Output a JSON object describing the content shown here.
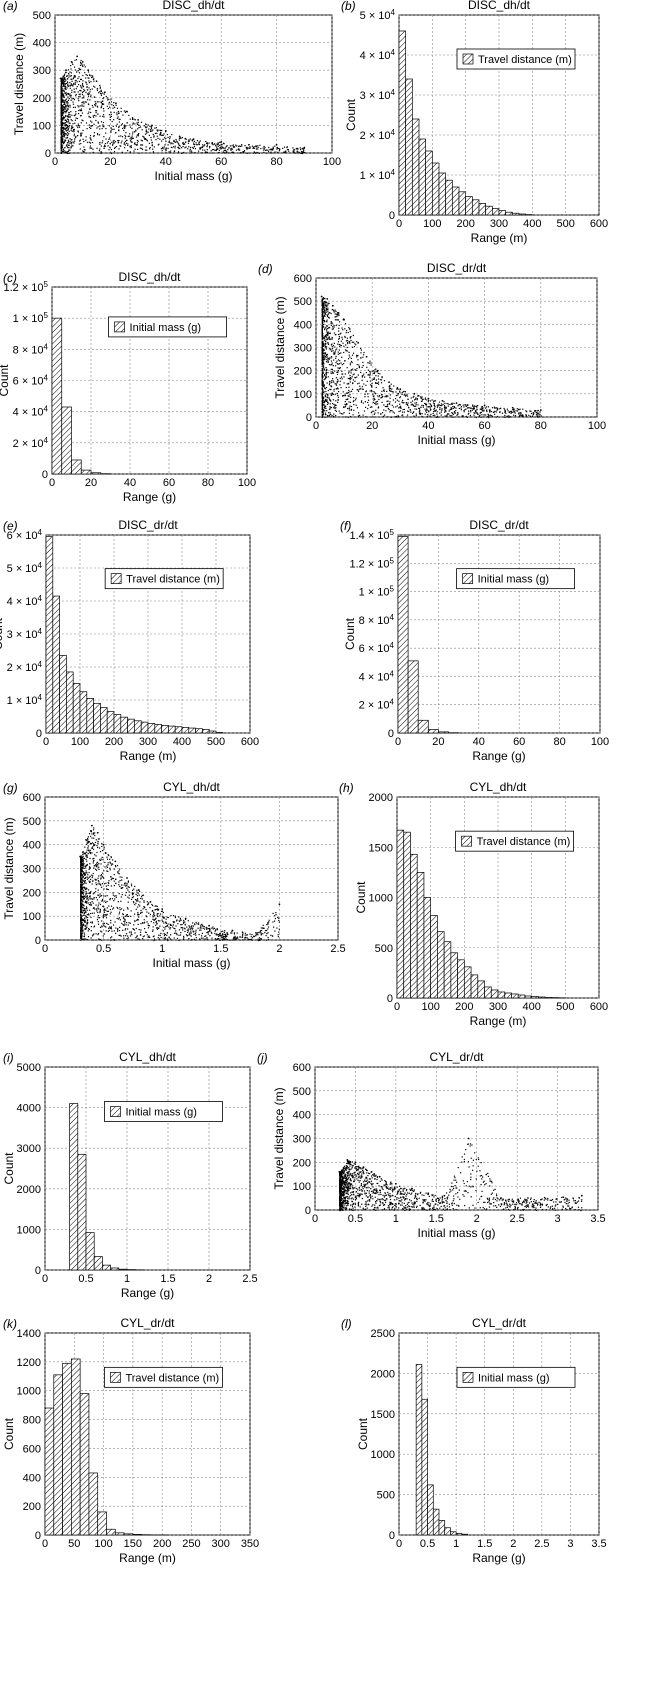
{
  "figure": {
    "panels": [
      {
        "label": "(a)",
        "title": "DISC_dh/dt",
        "kind": "scatter"
      },
      {
        "label": "(b)",
        "title": "DISC_dh/dt",
        "kind": "hist",
        "legend": "Travel distance (m)"
      },
      {
        "label": "(c)",
        "title": "DISC_dh/dt",
        "kind": "hist",
        "legend": "Initial mass (g)"
      },
      {
        "label": "(d)",
        "title": "DISC_dr/dt",
        "kind": "scatter"
      },
      {
        "label": "(e)",
        "title": "DISC_dr/dt",
        "kind": "hist",
        "legend": "Travel distance (m)"
      },
      {
        "label": "(f)",
        "title": "DISC_dr/dt",
        "kind": "hist",
        "legend": "Initial mass (g)"
      },
      {
        "label": "(g)",
        "title": "CYL_dh/dt",
        "kind": "scatter"
      },
      {
        "label": "(h)",
        "title": "CYL_dh/dt",
        "kind": "hist",
        "legend": "Travel distance (m)"
      },
      {
        "label": "(i)",
        "title": "CYL_dh/dt",
        "kind": "hist",
        "legend": "Initial mass (g)"
      },
      {
        "label": "(j)",
        "title": "CYL_dr/dt",
        "kind": "scatter"
      },
      {
        "label": "(k)",
        "title": "CYL_dr/dt",
        "kind": "hist",
        "legend": "Travel distance (m)"
      },
      {
        "label": "(l)",
        "title": "CYL_dr/dt",
        "kind": "hist",
        "legend": "Initial mass (g)"
      }
    ]
  },
  "chart_data": [
    {
      "panel": "(a)",
      "type": "scatter",
      "title": "DISC_dh/dt",
      "xlabel": "Initial mass (g)",
      "ylabel": "Travel distance (m)",
      "xlim": [
        0,
        100
      ],
      "ylim": [
        0,
        500
      ],
      "xticks": [
        "0",
        "20",
        "40",
        "60",
        "80",
        "100"
      ],
      "yticks": [
        "0",
        "100",
        "200",
        "300",
        "400",
        "500"
      ],
      "grid": true,
      "x": [
        2,
        4,
        6,
        8,
        10,
        12,
        15,
        18,
        22,
        26,
        30,
        35,
        40,
        45,
        50,
        60,
        70,
        80,
        90
      ],
      "y": [
        270,
        300,
        330,
        350,
        330,
        300,
        260,
        220,
        180,
        150,
        120,
        100,
        80,
        60,
        50,
        40,
        30,
        30,
        20
      ],
      "y_low": 0
    },
    {
      "panel": "(b)",
      "type": "bar",
      "title": "DISC_dh/dt",
      "xlabel": "Range (m)",
      "ylabel": "Count",
      "legend": "Travel distance (m)",
      "xlim": [
        0,
        600
      ],
      "ylim": [
        0,
        50000
      ],
      "xticks": [
        "0",
        "100",
        "200",
        "300",
        "400",
        "500",
        "600"
      ],
      "yticks": [
        "0",
        "1 × 10^4",
        "2 × 10^4",
        "3 × 10^4",
        "4 × 10^4",
        "5 × 10^4"
      ],
      "grid": true,
      "bin_edges": [
        0,
        20,
        40,
        60,
        80,
        100,
        120,
        140,
        160,
        180,
        200,
        220,
        240,
        260,
        280,
        300,
        320,
        340,
        360,
        380,
        400
      ],
      "values": [
        46000,
        34000,
        24000,
        19000,
        16000,
        13000,
        10500,
        8700,
        7000,
        5800,
        4600,
        3800,
        2900,
        2200,
        1600,
        1100,
        700,
        450,
        250,
        100
      ]
    },
    {
      "panel": "(c)",
      "type": "bar",
      "title": "DISC_dh/dt",
      "xlabel": "Range (g)",
      "ylabel": "Count",
      "legend": "Initial mass (g)",
      "xlim": [
        0,
        100
      ],
      "ylim": [
        0,
        120000
      ],
      "xticks": [
        "0",
        "20",
        "40",
        "60",
        "80",
        "100"
      ],
      "yticks": [
        "0",
        "2 × 10^4",
        "4 × 10^4",
        "6 × 10^4",
        "8 × 10^4",
        "1 × 10^5",
        "1.2 × 10^5"
      ],
      "grid": true,
      "bin_edges": [
        0,
        5,
        10,
        15,
        20,
        25,
        30
      ],
      "values": [
        100000,
        43000,
        9000,
        2500,
        800,
        200
      ]
    },
    {
      "panel": "(d)",
      "type": "scatter",
      "title": "DISC_dr/dt",
      "xlabel": "Initial mass (g)",
      "ylabel": "Travel distance (m)",
      "xlim": [
        0,
        100
      ],
      "ylim": [
        0,
        600
      ],
      "xticks": [
        "0",
        "20",
        "40",
        "60",
        "80",
        "100"
      ],
      "yticks": [
        "0",
        "100",
        "200",
        "300",
        "400",
        "500",
        "600"
      ],
      "grid": true,
      "x": [
        2,
        4,
        6,
        8,
        10,
        12,
        15,
        18,
        22,
        26,
        30,
        35,
        40,
        45,
        50,
        60,
        70,
        80
      ],
      "y": [
        520,
        510,
        480,
        450,
        420,
        380,
        320,
        260,
        200,
        150,
        120,
        100,
        80,
        70,
        60,
        50,
        40,
        30
      ],
      "y_low": 0
    },
    {
      "panel": "(e)",
      "type": "bar",
      "title": "DISC_dr/dt",
      "xlabel": "Range (m)",
      "ylabel": "Count",
      "legend": "Travel distance (m)",
      "xlim": [
        0,
        600
      ],
      "ylim": [
        0,
        60000
      ],
      "xticks": [
        "0",
        "100",
        "200",
        "300",
        "400",
        "500",
        "600"
      ],
      "yticks": [
        "0",
        "1 × 10^4",
        "2 × 10^4",
        "3 × 10^4",
        "4 × 10^4",
        "5 × 10^4",
        "6 × 10^4"
      ],
      "grid": true,
      "bin_edges": [
        0,
        20,
        40,
        60,
        80,
        100,
        120,
        140,
        160,
        180,
        200,
        220,
        240,
        260,
        280,
        300,
        320,
        340,
        360,
        380,
        400,
        420,
        440,
        460,
        480,
        500,
        520
      ],
      "values": [
        59500,
        41500,
        23500,
        18500,
        15000,
        12500,
        10500,
        9000,
        7700,
        6500,
        5600,
        4800,
        4200,
        3700,
        3300,
        2900,
        2600,
        2300,
        2100,
        1900,
        1700,
        1500,
        1300,
        1100,
        600,
        150
      ]
    },
    {
      "panel": "(f)",
      "type": "bar",
      "title": "DISC_dr/dt",
      "xlabel": "Range (g)",
      "ylabel": "Count",
      "legend": "Initial mass (g)",
      "xlim": [
        0,
        100
      ],
      "ylim": [
        0,
        140000
      ],
      "xticks": [
        "0",
        "20",
        "40",
        "60",
        "80",
        "100"
      ],
      "yticks": [
        "0",
        "2 × 10^4",
        "4 × 10^4",
        "6 × 10^4",
        "8 × 10^4",
        "1 × 10^5",
        "1.2 × 10^5",
        "1.4 × 10^5"
      ],
      "grid": true,
      "bin_edges": [
        0,
        5,
        10,
        15,
        20,
        25,
        30
      ],
      "values": [
        139000,
        51000,
        9000,
        2500,
        800,
        200
      ]
    },
    {
      "panel": "(g)",
      "type": "scatter",
      "title": "CYL_dh/dt",
      "xlabel": "Initial mass (g)",
      "ylabel": "Travel distance (m)",
      "xlim": [
        0,
        2.5
      ],
      "ylim": [
        0,
        600
      ],
      "xticks": [
        "0",
        "0.5",
        "1",
        "1.5",
        "2",
        "2.5"
      ],
      "yticks": [
        "0",
        "100",
        "200",
        "300",
        "400",
        "500",
        "600"
      ],
      "grid": true,
      "x": [
        0.3,
        0.35,
        0.4,
        0.45,
        0.5,
        0.6,
        0.7,
        0.8,
        0.9,
        1.0,
        1.2,
        1.4,
        1.6,
        1.8,
        2.0
      ],
      "y": [
        350,
        420,
        480,
        450,
        400,
        330,
        260,
        210,
        160,
        130,
        90,
        60,
        40,
        30,
        150
      ],
      "y_low": 0
    },
    {
      "panel": "(h)",
      "type": "bar",
      "title": "CYL_dh/dt",
      "xlabel": "Range (m)",
      "ylabel": "Count",
      "legend": "Travel distance (m)",
      "xlim": [
        0,
        600
      ],
      "ylim": [
        0,
        2000
      ],
      "xticks": [
        "0",
        "100",
        "200",
        "300",
        "400",
        "500",
        "600"
      ],
      "yticks": [
        "0",
        "500",
        "1000",
        "1500",
        "2000"
      ],
      "grid": true,
      "bin_edges": [
        0,
        20,
        40,
        60,
        80,
        100,
        120,
        140,
        160,
        180,
        200,
        220,
        240,
        260,
        280,
        300,
        320,
        340,
        360,
        380,
        400,
        420,
        440,
        460,
        480,
        500
      ],
      "values": [
        1670,
        1650,
        1430,
        1250,
        1000,
        820,
        660,
        560,
        450,
        380,
        310,
        230,
        170,
        110,
        80,
        60,
        50,
        40,
        30,
        20,
        15,
        10,
        5,
        4,
        2
      ]
    },
    {
      "panel": "(i)",
      "type": "bar",
      "title": "CYL_dh/dt",
      "xlabel": "Range (g)",
      "ylabel": "Count",
      "legend": "Initial mass (g)",
      "xlim": [
        0,
        2.5
      ],
      "ylim": [
        0,
        5000
      ],
      "xticks": [
        "0",
        "0.5",
        "1",
        "1.5",
        "2",
        "2.5"
      ],
      "yticks": [
        "0",
        "1000",
        "2000",
        "3000",
        "4000",
        "5000"
      ],
      "grid": true,
      "bin_edges": [
        0.3,
        0.4,
        0.5,
        0.6,
        0.7,
        0.8,
        0.9,
        1.0,
        1.1,
        1.2
      ],
      "values": [
        4100,
        2850,
        920,
        330,
        120,
        50,
        20,
        10,
        5
      ]
    },
    {
      "panel": "(j)",
      "type": "scatter",
      "title": "CYL_dr/dt",
      "xlabel": "Initial mass (g)",
      "ylabel": "Travel distance (m)",
      "xlim": [
        0,
        3.5
      ],
      "ylim": [
        0,
        600
      ],
      "xticks": [
        "0",
        "0.5",
        "1",
        "1.5",
        "2",
        "2.5",
        "3",
        "3.5"
      ],
      "yticks": [
        "0",
        "100",
        "200",
        "300",
        "400",
        "500",
        "600"
      ],
      "grid": true,
      "x": [
        0.3,
        0.4,
        0.5,
        0.6,
        0.7,
        0.8,
        1.0,
        1.2,
        1.4,
        1.6,
        1.9,
        2.3,
        3.3
      ],
      "y": [
        160,
        210,
        200,
        180,
        160,
        140,
        110,
        90,
        70,
        60,
        300,
        50,
        60
      ],
      "y_low": 0
    },
    {
      "panel": "(k)",
      "type": "bar",
      "title": "CYL_dr/dt",
      "xlabel": "Range (m)",
      "ylabel": "Count",
      "legend": "Travel distance (m)",
      "xlim": [
        0,
        350
      ],
      "ylim": [
        0,
        1400
      ],
      "xticks": [
        "0",
        "50",
        "100",
        "150",
        "200",
        "250",
        "300",
        "350"
      ],
      "yticks": [
        "0",
        "200",
        "400",
        "600",
        "800",
        "1000",
        "1200",
        "1400"
      ],
      "grid": true,
      "bin_edges": [
        0,
        15,
        30,
        45,
        60,
        75,
        90,
        105,
        120,
        135,
        150,
        165,
        180,
        195,
        210
      ],
      "values": [
        880,
        1110,
        1190,
        1220,
        980,
        430,
        160,
        40,
        15,
        8,
        4,
        2,
        1,
        1
      ]
    },
    {
      "panel": "(l)",
      "type": "bar",
      "title": "CYL_dr/dt",
      "xlabel": "Range (g)",
      "ylabel": "Count",
      "legend": "Initial mass (g)",
      "xlim": [
        0,
        3.5
      ],
      "ylim": [
        0,
        2500
      ],
      "xticks": [
        "0",
        "0.5",
        "1",
        "1.5",
        "2",
        "2.5",
        "3",
        "3.5"
      ],
      "yticks": [
        "0",
        "500",
        "1000",
        "1500",
        "2000",
        "2500"
      ],
      "grid": true,
      "bin_edges": [
        0.3,
        0.4,
        0.5,
        0.6,
        0.7,
        0.8,
        0.9,
        1.0,
        1.1,
        1.2
      ],
      "values": [
        2110,
        1680,
        620,
        320,
        180,
        90,
        40,
        20,
        10
      ]
    }
  ]
}
